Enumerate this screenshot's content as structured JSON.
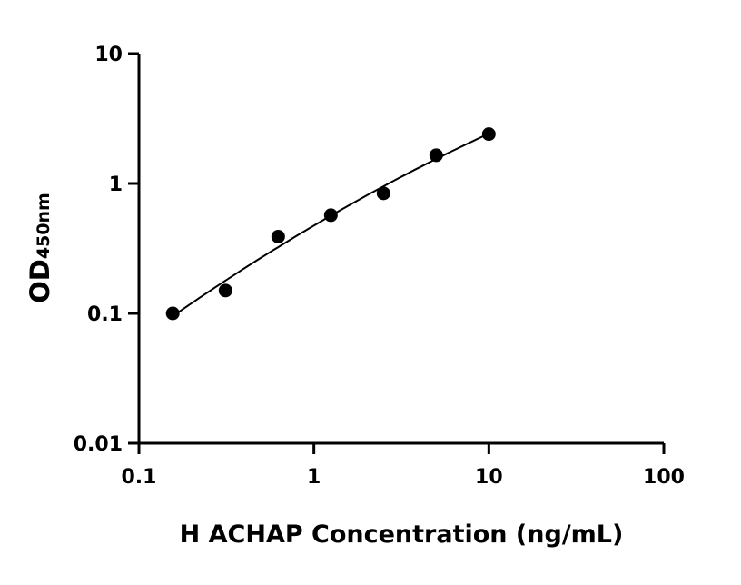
{
  "chart_data": {
    "type": "scatter",
    "title": "",
    "xlabel": "H ACHAP Concentration (ng/mL)",
    "ylabel_main": "OD",
    "ylabel_sub": "450nm",
    "x_scale": "log",
    "y_scale": "log",
    "xlim": [
      0.1,
      100
    ],
    "ylim": [
      0.01,
      10
    ],
    "x_ticks": [
      "0.1",
      "1",
      "10",
      "100"
    ],
    "y_ticks": [
      "0.01",
      "0.1",
      "1",
      "10"
    ],
    "grid": false,
    "legend": "none",
    "fit_curve": true,
    "marker_color": "#000000",
    "points": [
      {
        "x": 0.156,
        "y": 0.1
      },
      {
        "x": 0.3125,
        "y": 0.15
      },
      {
        "x": 0.625,
        "y": 0.39
      },
      {
        "x": 1.25,
        "y": 0.57
      },
      {
        "x": 2.5,
        "y": 0.84
      },
      {
        "x": 5,
        "y": 1.65
      },
      {
        "x": 10,
        "y": 2.4
      }
    ]
  }
}
